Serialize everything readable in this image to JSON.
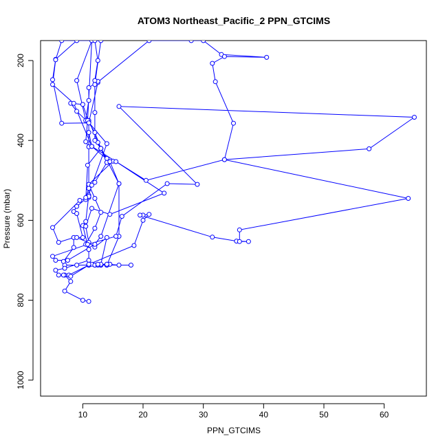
{
  "chart_data": {
    "type": "line",
    "title": "ATOM3 Northeast_Pacific_2 PPN_GTCIMS",
    "xlabel": "PPN_GTCIMS",
    "ylabel": "Pressure (mbar)",
    "xlim": [
      3,
      67
    ],
    "ylim": [
      1040,
      150
    ],
    "y_reversed": true,
    "x_ticks": [
      10,
      20,
      30,
      40,
      50,
      60
    ],
    "y_ticks": [
      200,
      400,
      600,
      800,
      1000
    ],
    "grid": false,
    "color": "#0000ff",
    "series": [
      {
        "points": [
          [
            11,
            803
          ],
          [
            10,
            800
          ],
          [
            7,
            777
          ],
          [
            8,
            753
          ],
          [
            7,
            737
          ],
          [
            6.8,
            737
          ],
          [
            7.7,
            737
          ],
          [
            11,
            712
          ],
          [
            12,
            712
          ],
          [
            13,
            712
          ],
          [
            14,
            712
          ],
          [
            14.5,
            710
          ],
          [
            14,
            710
          ],
          [
            16,
            712
          ],
          [
            18,
            712
          ],
          [
            14,
            712
          ],
          [
            12,
            712
          ],
          [
            11,
            712
          ],
          [
            11.5,
            710
          ],
          [
            13,
            712
          ],
          [
            14.5,
            710
          ],
          [
            13,
            712
          ],
          [
            12,
            712
          ],
          [
            11,
            712
          ],
          [
            9,
            712
          ],
          [
            7,
            712
          ],
          [
            6.8,
            703
          ],
          [
            8.5,
            668
          ],
          [
            8.5,
            643
          ],
          [
            6,
            655
          ],
          [
            5,
            618
          ],
          [
            9.5,
            550
          ],
          [
            11,
            543
          ],
          [
            11,
            520
          ],
          [
            12,
            505
          ],
          [
            14,
            455
          ],
          [
            13,
            420
          ],
          [
            12.5,
            405
          ],
          [
            11,
            350
          ],
          [
            11,
            355
          ],
          [
            12,
            380
          ],
          [
            13,
            420
          ],
          [
            14,
            445
          ],
          [
            15,
            452
          ],
          [
            11,
            510
          ],
          [
            12,
            545
          ],
          [
            13,
            580
          ],
          [
            12,
            620
          ],
          [
            10.5,
            660
          ],
          [
            11,
            673
          ],
          [
            10,
            613
          ],
          [
            10.5,
            603
          ],
          [
            11,
            537
          ],
          [
            11.5,
            512
          ],
          [
            14,
            408
          ],
          [
            11,
            355
          ],
          [
            10,
            310
          ],
          [
            8,
            307
          ],
          [
            9,
            327
          ],
          [
            11,
            356
          ],
          [
            12.5,
            255
          ],
          [
            12.5,
            252
          ],
          [
            11,
            268
          ],
          [
            11,
            300
          ],
          [
            10.5,
            350
          ],
          [
            9,
            250
          ],
          [
            11.5,
            150
          ],
          [
            10.8,
            350
          ],
          [
            10.5,
            403
          ],
          [
            11,
            416
          ],
          [
            11,
            540
          ],
          [
            9,
            565
          ],
          [
            8.5,
            578
          ],
          [
            9,
            583
          ],
          [
            10,
            643
          ],
          [
            9,
            643
          ],
          [
            11,
            656
          ],
          [
            12,
            667
          ],
          [
            14,
            643
          ],
          [
            13,
            710
          ],
          [
            14,
            712
          ],
          [
            16,
            640
          ],
          [
            16,
            508
          ],
          [
            13,
            420
          ],
          [
            10.8,
            462
          ],
          [
            10.5,
            548
          ],
          [
            10.5,
            543
          ],
          [
            11,
            520
          ],
          [
            11,
            356
          ],
          [
            6.5,
            357
          ],
          [
            5,
            248
          ],
          [
            5.5,
            197
          ],
          [
            9,
            150
          ],
          [
            12,
            150
          ],
          [
            12.5,
            200
          ],
          [
            12,
            250
          ],
          [
            12,
            330
          ],
          [
            12,
            400
          ],
          [
            13,
            420
          ],
          [
            14,
            455
          ],
          [
            15.5,
            453
          ],
          [
            23.5,
            532
          ],
          [
            14.5,
            585
          ],
          [
            11.5,
            570
          ],
          [
            10.5,
            615
          ],
          [
            11,
            655
          ],
          [
            11,
            673
          ],
          [
            11,
            700
          ],
          [
            7,
            720
          ],
          [
            5.5,
            725
          ],
          [
            6,
            737
          ],
          [
            8,
            740
          ],
          [
            11,
            712
          ],
          [
            12.5,
            712
          ],
          [
            14,
            712
          ],
          [
            14,
            710
          ],
          [
            12.5,
            710
          ],
          [
            11,
            710
          ],
          [
            18.5,
            663
          ],
          [
            20,
            600
          ],
          [
            21,
            585
          ],
          [
            20,
            587
          ],
          [
            19.5,
            587
          ],
          [
            31.5,
            642
          ],
          [
            35.5,
            652
          ],
          [
            37.5,
            653
          ],
          [
            36,
            653
          ],
          [
            36,
            624
          ],
          [
            64,
            545
          ],
          [
            33.5,
            448
          ],
          [
            57.5,
            421
          ],
          [
            65,
            342
          ],
          [
            16,
            315
          ],
          [
            29,
            510
          ],
          [
            24,
            508
          ],
          [
            16.5,
            590
          ],
          [
            15.5,
            640
          ],
          [
            10.8,
            660
          ],
          [
            5,
            690
          ],
          [
            5.5,
            700
          ],
          [
            7.5,
            700
          ],
          [
            12,
            660
          ],
          [
            13,
            640
          ],
          [
            16,
            508
          ],
          [
            14.5,
            453
          ],
          [
            11.5,
            415
          ],
          [
            8.5,
            307
          ],
          [
            5,
            260
          ],
          [
            5.5,
            198
          ],
          [
            6.5,
            150
          ],
          [
            13,
            150
          ],
          [
            12,
            260
          ],
          [
            21,
            150
          ],
          [
            28,
            150
          ],
          [
            30,
            150
          ],
          [
            33,
            185
          ],
          [
            40.5,
            192
          ],
          [
            33.5,
            190
          ],
          [
            31.5,
            207
          ],
          [
            32,
            253
          ],
          [
            35,
            357
          ],
          [
            33.5,
            448
          ],
          [
            20.5,
            500
          ],
          [
            11.5,
            415
          ],
          [
            11,
            380
          ]
        ]
      }
    ]
  }
}
